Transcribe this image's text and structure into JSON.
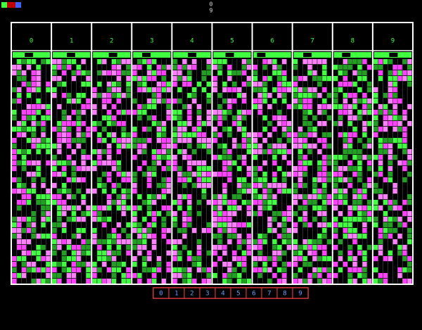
{
  "header": {
    "counter": [
      "0",
      "9"
    ]
  },
  "columns": [
    "0",
    "1",
    "2",
    "3",
    "4",
    "5",
    "6",
    "7",
    "8",
    "9"
  ],
  "buttons": [
    "0",
    "1",
    "2",
    "3",
    "4",
    "5",
    "6",
    "7",
    "8",
    "9"
  ]
}
